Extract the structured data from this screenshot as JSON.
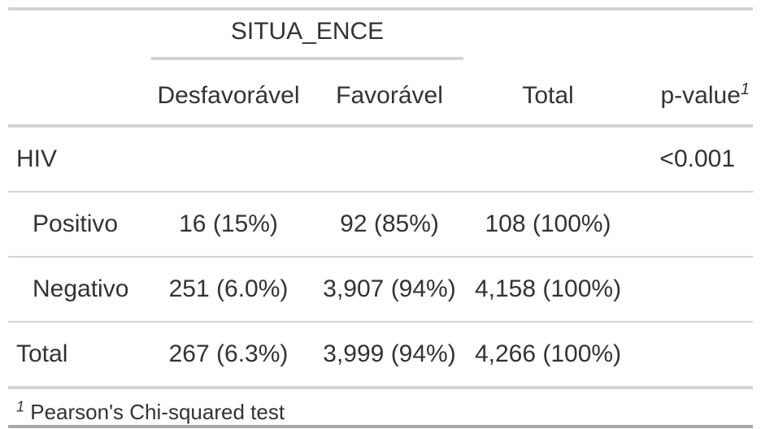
{
  "table": {
    "spanner": "SITUA_ENCE",
    "columns": {
      "label": "",
      "desfavoravel": "Desfavorável",
      "favoravel": "Favorável",
      "total": "Total",
      "pvalue": "p-value",
      "pvalue_footnote_mark": "1"
    },
    "rows": [
      {
        "label": "HIV",
        "desfavoravel": "",
        "favoravel": "",
        "total": "",
        "pvalue": "<0.001"
      },
      {
        "label": "Positivo",
        "desfavoravel": "16 (15%)",
        "favoravel": "92 (85%)",
        "total": "108 (100%)",
        "pvalue": ""
      },
      {
        "label": "Negativo",
        "desfavoravel": "251 (6.0%)",
        "favoravel": "3,907 (94%)",
        "total": "4,158 (100%)",
        "pvalue": ""
      },
      {
        "label": "Total",
        "desfavoravel": "267 (6.3%)",
        "favoravel": "3,999 (94%)",
        "total": "4,266 (100%)",
        "pvalue": ""
      }
    ],
    "footnote": {
      "mark": "1",
      "text": "Pearson's Chi-squared test"
    }
  }
}
